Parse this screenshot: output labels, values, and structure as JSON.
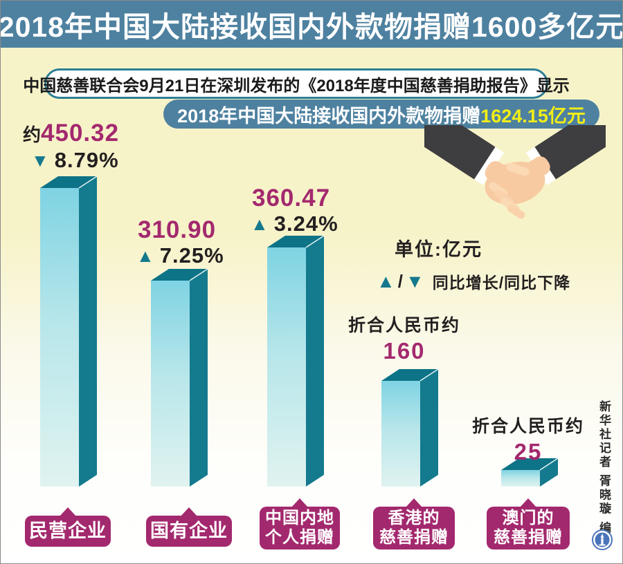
{
  "title": "2018年中国大陆接收国内外款物捐赠1600多亿元",
  "note": "中国慈善联合会9月21日在深圳发布的《2018年度中国慈善捐助报告》显示",
  "banner": {
    "prefix": "2018年中国大陆接收国内外款物捐赠",
    "highlight": "1624.15亿元"
  },
  "legend": {
    "unit": "单位:亿元",
    "slash": "/",
    "desc": "同比增长/同比下降"
  },
  "icons": {
    "up": "▲",
    "down": "▼"
  },
  "credit": "新华社记者 胥晓璇 编制",
  "colors": {
    "band_blue": "#4e81a0",
    "magenta": "#a3296e",
    "teal": "#15798d",
    "bar_front_top": "#7fd3e3",
    "bar_front_bottom": "#e0f3f0",
    "bar_side": "#147a8e",
    "bar_top": "#0d7386",
    "highlight_yellow": "#f2ee17",
    "background_yellow": "#f7f3c9"
  },
  "chart_data": {
    "type": "bar",
    "title": "2018年中国大陆接收国内外款物捐赠1600多亿元",
    "unit": "亿元",
    "total": "1624.15",
    "categories": [
      "民营企业",
      "国有企业",
      "中国内地个人捐赠",
      "香港的慈善捐赠",
      "澳门的慈善捐赠"
    ],
    "values": [
      450.32,
      310.9,
      360.47,
      160,
      25
    ],
    "legend_note": "▲/▼ 同比增长/同比下降",
    "bars": [
      {
        "label_lines": [
          "民营企业"
        ],
        "value_prefix": "约",
        "value_text": "450.32",
        "numeric": 450.32,
        "change": "8.79%",
        "direction": "down"
      },
      {
        "label_lines": [
          "国有企业"
        ],
        "value_prefix": "",
        "value_text": "310.90",
        "numeric": 310.9,
        "change": "7.25%",
        "direction": "up"
      },
      {
        "label_lines": [
          "中国内地",
          "个人捐赠"
        ],
        "value_prefix": "",
        "value_text": "360.47",
        "numeric": 360.47,
        "change": "3.24%",
        "direction": "up"
      },
      {
        "label_lines": [
          "香港的",
          "慈善捐赠"
        ],
        "approx_line": "折合人民币约",
        "value_text": "160",
        "numeric": 160
      },
      {
        "label_lines": [
          "澳门的",
          "慈善捐赠"
        ],
        "approx_line": "折合人民币约",
        "value_text": "25",
        "numeric": 25
      }
    ]
  }
}
